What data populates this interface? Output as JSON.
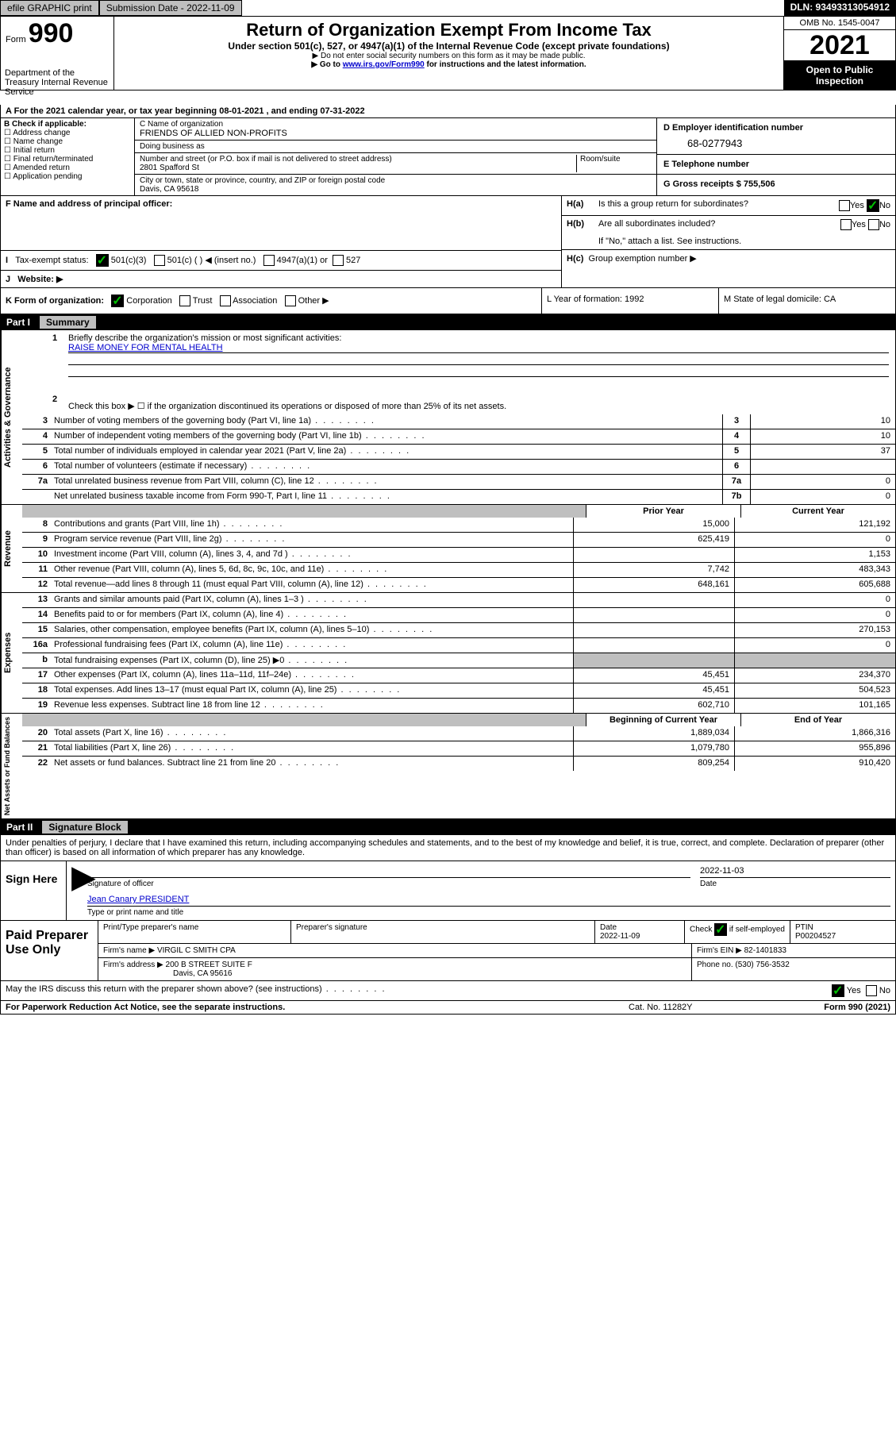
{
  "topbar": {
    "efile": "efile GRAPHIC print",
    "submission": "Submission Date - 2022-11-09",
    "dln": "DLN: 93493313054912"
  },
  "header": {
    "form_prefix": "Form",
    "form_number": "990",
    "title": "Return of Organization Exempt From Income Tax",
    "subtitle": "Under section 501(c), 527, or 4947(a)(1) of the Internal Revenue Code (except private foundations)",
    "note1": "▶ Do not enter social security numbers on this form as it may be made public.",
    "note2_pre": "▶ Go to ",
    "note2_link": "www.irs.gov/Form990",
    "note2_post": " for instructions and the latest information.",
    "omb": "OMB No. 1545-0047",
    "year": "2021",
    "open": "Open to Public Inspection",
    "dept": "Department of the Treasury Internal Revenue Service"
  },
  "line_a": "For the 2021 calendar year, or tax year beginning 08-01-2021  , and ending 07-31-2022",
  "box_b": {
    "label": "B Check if applicable:",
    "items": [
      "Address change",
      "Name change",
      "Initial return",
      "Final return/terminated",
      "Amended return",
      "Application pending"
    ]
  },
  "box_c": {
    "name_label": "C Name of organization",
    "name": "FRIENDS OF ALLIED NON-PROFITS",
    "dba": "Doing business as",
    "street_label": "Number and street (or P.O. box if mail is not delivered to street address)",
    "room_label": "Room/suite",
    "street": "2801 Spafford St",
    "city_label": "City or town, state or province, country, and ZIP or foreign postal code",
    "city": "Davis, CA  95618"
  },
  "box_d_label": "D Employer identification number",
  "ein": "68-0277943",
  "box_e_label": "E Telephone number",
  "box_g": "G Gross receipts $ 755,506",
  "box_f": "F  Name and address of principal officer:",
  "box_h": {
    "a": "Is this a group return for subordinates?",
    "b": "Are all subordinates included?",
    "b_note": "If \"No,\" attach a list. See instructions.",
    "c": "Group exemption number ▶"
  },
  "box_i": {
    "label": "Tax-exempt status:",
    "opts": [
      "501(c)(3)",
      "501(c) (  ) ◀ (insert no.)",
      "4947(a)(1) or",
      "527"
    ]
  },
  "box_j": "Website: ▶",
  "box_k": "K Form of organization:",
  "box_k_opts": [
    "Corporation",
    "Trust",
    "Association",
    "Other ▶"
  ],
  "box_l": "L Year of formation: 1992",
  "box_m": "M State of legal domicile: CA",
  "part1": {
    "label": "Part I",
    "title": "Summary",
    "mission_q": "Briefly describe the organization's mission or most significant activities:",
    "mission": "RAISE MONEY FOR MENTAL HEALTH",
    "line2": "Check this box ▶ ☐  if the organization discontinued its operations or disposed of more than 25% of its net assets.",
    "rows_gov": [
      {
        "n": "3",
        "label": "Number of voting members of the governing body (Part VI, line 1a)",
        "box": "3",
        "val": "10"
      },
      {
        "n": "4",
        "label": "Number of independent voting members of the governing body (Part VI, line 1b)",
        "box": "4",
        "val": "10"
      },
      {
        "n": "5",
        "label": "Total number of individuals employed in calendar year 2021 (Part V, line 2a)",
        "box": "5",
        "val": "37"
      },
      {
        "n": "6",
        "label": "Total number of volunteers (estimate if necessary)",
        "box": "6",
        "val": ""
      },
      {
        "n": "7a",
        "label": "Total unrelated business revenue from Part VIII, column (C), line 12",
        "box": "7a",
        "val": "0"
      },
      {
        "n": "",
        "label": "Net unrelated business taxable income from Form 990-T, Part I, line 11",
        "box": "7b",
        "val": "0"
      }
    ],
    "col_headers": {
      "prior": "Prior Year",
      "current": "Current Year"
    },
    "rows_rev": [
      {
        "n": "8",
        "label": "Contributions and grants (Part VIII, line 1h)",
        "c1": "15,000",
        "c2": "121,192"
      },
      {
        "n": "9",
        "label": "Program service revenue (Part VIII, line 2g)",
        "c1": "625,419",
        "c2": "0"
      },
      {
        "n": "10",
        "label": "Investment income (Part VIII, column (A), lines 3, 4, and 7d )",
        "c1": "",
        "c2": "1,153"
      },
      {
        "n": "11",
        "label": "Other revenue (Part VIII, column (A), lines 5, 6d, 8c, 9c, 10c, and 11e)",
        "c1": "7,742",
        "c2": "483,343"
      },
      {
        "n": "12",
        "label": "Total revenue—add lines 8 through 11 (must equal Part VIII, column (A), line 12)",
        "c1": "648,161",
        "c2": "605,688"
      }
    ],
    "rows_exp": [
      {
        "n": "13",
        "label": "Grants and similar amounts paid (Part IX, column (A), lines 1–3 )",
        "c1": "",
        "c2": "0"
      },
      {
        "n": "14",
        "label": "Benefits paid to or for members (Part IX, column (A), line 4)",
        "c1": "",
        "c2": "0"
      },
      {
        "n": "15",
        "label": "Salaries, other compensation, employee benefits (Part IX, column (A), lines 5–10)",
        "c1": "",
        "c2": "270,153"
      },
      {
        "n": "16a",
        "label": "Professional fundraising fees (Part IX, column (A), line 11e)",
        "c1": "",
        "c2": "0"
      },
      {
        "n": "b",
        "label": "Total fundraising expenses (Part IX, column (D), line 25) ▶0",
        "c1": "shade",
        "c2": "shade"
      },
      {
        "n": "17",
        "label": "Other expenses (Part IX, column (A), lines 11a–11d, 11f–24e)",
        "c1": "45,451",
        "c2": "234,370"
      },
      {
        "n": "18",
        "label": "Total expenses. Add lines 13–17 (must equal Part IX, column (A), line 25)",
        "c1": "45,451",
        "c2": "504,523"
      },
      {
        "n": "19",
        "label": "Revenue less expenses. Subtract line 18 from line 12",
        "c1": "602,710",
        "c2": "101,165"
      }
    ],
    "na_headers": {
      "begin": "Beginning of Current Year",
      "end": "End of Year"
    },
    "rows_na": [
      {
        "n": "20",
        "label": "Total assets (Part X, line 16)",
        "c1": "1,889,034",
        "c2": "1,866,316"
      },
      {
        "n": "21",
        "label": "Total liabilities (Part X, line 26)",
        "c1": "1,079,780",
        "c2": "955,896"
      },
      {
        "n": "22",
        "label": "Net assets or fund balances. Subtract line 21 from line 20",
        "c1": "809,254",
        "c2": "910,420"
      }
    ]
  },
  "part2": {
    "label": "Part II",
    "title": "Signature Block",
    "declaration": "Under penalties of perjury, I declare that I have examined this return, including accompanying schedules and statements, and to the best of my knowledge and belief, it is true, correct, and complete. Declaration of preparer (other than officer) is based on all information of which preparer has any knowledge."
  },
  "sign": {
    "here": "Sign Here",
    "sig_officer": "Signature of officer",
    "date": "Date",
    "date_val": "2022-11-03",
    "name": "Jean Canary  PRESIDENT",
    "name_label": "Type or print name and title"
  },
  "preparer": {
    "title": "Paid Preparer Use Only",
    "h1": "Print/Type preparer's name",
    "h2": "Preparer's signature",
    "h3": "Date",
    "date": "2022-11-09",
    "h4_pre": "Check",
    "h4_post": "if self-employed",
    "h5": "PTIN",
    "ptin": "P00204527",
    "firm_name_l": "Firm's name    ▶",
    "firm_name": "VIRGIL C SMITH CPA",
    "firm_ein_l": "Firm's EIN ▶",
    "firm_ein": "82-1401833",
    "firm_addr_l": "Firm's address ▶",
    "firm_addr1": "200 B STREET SUITE F",
    "firm_addr2": "Davis, CA  95616",
    "phone_l": "Phone no.",
    "phone": "(530) 756-3532",
    "discuss": "May the IRS discuss this return with the preparer shown above? (see instructions)"
  },
  "footer": {
    "pra": "For Paperwork Reduction Act Notice, see the separate instructions.",
    "cat": "Cat. No. 11282Y",
    "form": "Form 990 (2021)"
  },
  "side_labels": {
    "gov": "Activities & Governance",
    "rev": "Revenue",
    "exp": "Expenses",
    "na": "Net Assets or Fund Balances"
  }
}
